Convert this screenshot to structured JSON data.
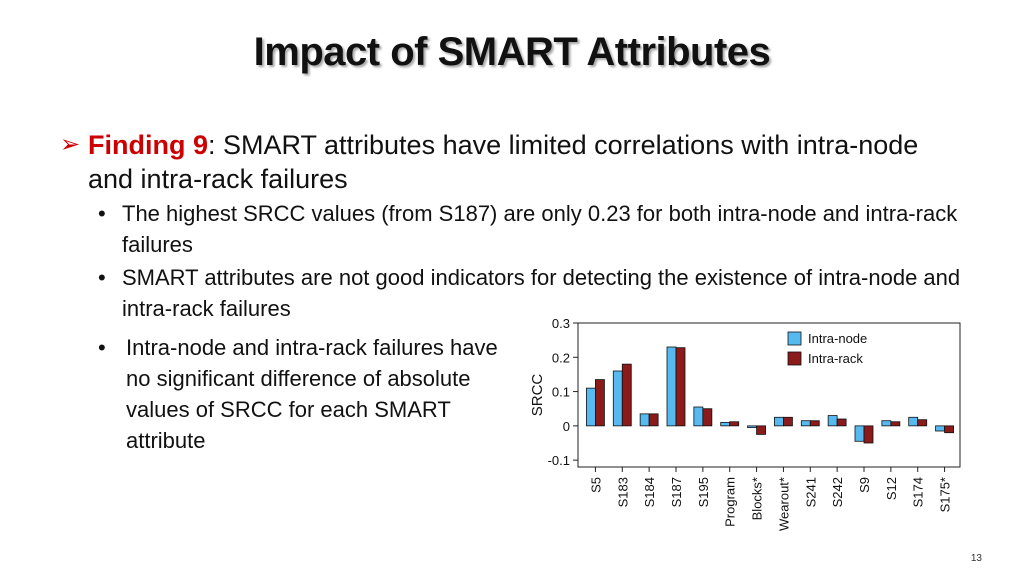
{
  "title": "Impact of SMART Attributes",
  "finding": {
    "label": "Finding 9",
    "text": ": SMART attributes have limited correlations with intra-node and intra-rack failures"
  },
  "bullets": [
    "The highest SRCC values (from S187) are only 0.23 for both intra-node and intra-rack failures",
    "SMART attributes are not good indicators for detecting the existence of intra-node and intra-rack failures",
    "Intra-node and intra-rack failures have no significant difference of absolute values of SRCC for each SMART attribute"
  ],
  "page_number": "13",
  "chart_data": {
    "type": "bar",
    "ylabel": "SRCC",
    "xlabel": "",
    "ylim": [
      -0.12,
      0.3
    ],
    "yticks": [
      -0.1,
      0,
      0.1,
      0.2,
      0.3
    ],
    "ytick_labels": [
      "-0.1",
      "0",
      "0.1",
      "0.2",
      "0.3"
    ],
    "grid": false,
    "legend_position": "top-right",
    "categories": [
      "S5",
      "S183",
      "S184",
      "S187",
      "S195",
      "Program",
      "Blocks*",
      "Wearout*",
      "S241",
      "S242",
      "S9",
      "S12",
      "S174",
      "S175*"
    ],
    "series": [
      {
        "name": "Intra-node",
        "color": "#56b9ef",
        "values": [
          0.11,
          0.16,
          0.035,
          0.23,
          0.055,
          0.01,
          -0.005,
          0.025,
          0.015,
          0.03,
          -0.045,
          0.015,
          0.025,
          -0.015
        ]
      },
      {
        "name": "Intra-rack",
        "color": "#8b1a1a",
        "values": [
          0.135,
          0.18,
          0.035,
          0.228,
          0.05,
          0.012,
          -0.025,
          0.025,
          0.015,
          0.02,
          -0.05,
          0.012,
          0.018,
          -0.02
        ]
      }
    ]
  }
}
